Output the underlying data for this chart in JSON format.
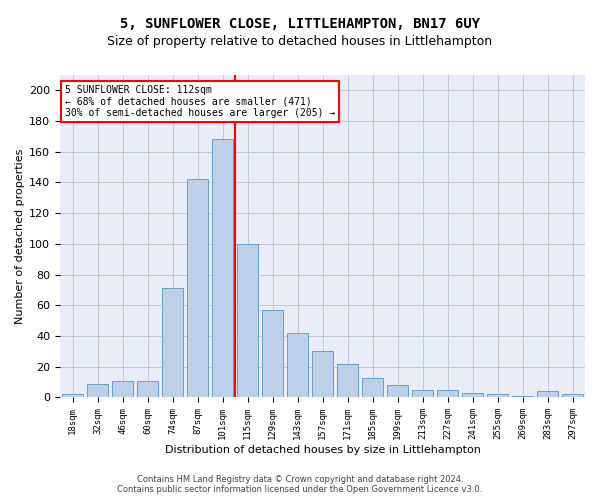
{
  "title": "5, SUNFLOWER CLOSE, LITTLEHAMPTON, BN17 6UY",
  "subtitle": "Size of property relative to detached houses in Littlehampton",
  "xlabel": "Distribution of detached houses by size in Littlehampton",
  "ylabel": "Number of detached properties",
  "footer_line1": "Contains HM Land Registry data © Crown copyright and database right 2024.",
  "footer_line2": "Contains public sector information licensed under the Open Government Licence v3.0.",
  "annotation_line1": "5 SUNFLOWER CLOSE: 112sqm",
  "annotation_line2": "← 68% of detached houses are smaller (471)",
  "annotation_line3": "30% of semi-detached houses are larger (205) →",
  "categories": [
    "18sqm",
    "32sqm",
    "46sqm",
    "60sqm",
    "74sqm",
    "87sqm",
    "101sqm",
    "115sqm",
    "129sqm",
    "143sqm",
    "157sqm",
    "171sqm",
    "185sqm",
    "199sqm",
    "213sqm",
    "227sqm",
    "241sqm",
    "255sqm",
    "269sqm",
    "283sqm",
    "297sqm"
  ],
  "heights": [
    2,
    9,
    11,
    11,
    71,
    142,
    168,
    100,
    57,
    42,
    30,
    22,
    13,
    8,
    5,
    5,
    3,
    2,
    1,
    4,
    2
  ],
  "bar_color": "#bdd0e9",
  "bar_edge_color": "#6aa0c8",
  "red_line_index": 7,
  "ylim_max": 210,
  "yticks": [
    0,
    20,
    40,
    60,
    80,
    100,
    120,
    140,
    160,
    180,
    200
  ],
  "bg_color": "#e8edf8",
  "grid_color": "#c0c8dc",
  "title_fontsize": 10,
  "subtitle_fontsize": 9,
  "xlabel_fontsize": 8,
  "ylabel_fontsize": 8,
  "xtick_fontsize": 6.5,
  "ytick_fontsize": 8,
  "footer_fontsize": 6,
  "annotation_fontsize": 7
}
